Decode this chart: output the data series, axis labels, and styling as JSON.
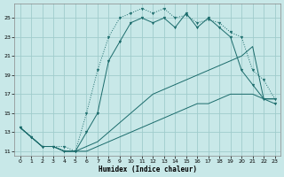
{
  "xlabel": "Humidex (Indice chaleur)",
  "bg_color": "#c8e8e8",
  "grid_color": "#a0cccc",
  "line_color": "#1a6b6b",
  "xlim": [
    -0.5,
    23.5
  ],
  "ylim": [
    10.5,
    26.5
  ],
  "yticks": [
    11,
    13,
    15,
    17,
    19,
    21,
    23,
    25
  ],
  "xticks": [
    0,
    1,
    2,
    3,
    4,
    5,
    6,
    7,
    8,
    9,
    10,
    11,
    12,
    13,
    14,
    15,
    16,
    17,
    18,
    19,
    20,
    21,
    22,
    23
  ],
  "line1_x": [
    0,
    1,
    2,
    3,
    4,
    5,
    6,
    7,
    8,
    9,
    10,
    11,
    12,
    13,
    14,
    15,
    16,
    17,
    18,
    19,
    20,
    21,
    22,
    23
  ],
  "line1_y": [
    13.5,
    12.5,
    11.5,
    11.5,
    11.5,
    11.0,
    15.0,
    19.5,
    23.0,
    25.0,
    25.5,
    26.0,
    25.5,
    26.0,
    25.0,
    25.3,
    24.5,
    24.8,
    24.5,
    23.5,
    23.0,
    19.5,
    18.5,
    16.5
  ],
  "line2_x": [
    0,
    1,
    2,
    3,
    4,
    5,
    6,
    7,
    8,
    9,
    10,
    11,
    12,
    13,
    14,
    15,
    16,
    17,
    18,
    19,
    20,
    21,
    22,
    23
  ],
  "line2_y": [
    13.5,
    12.5,
    11.5,
    11.5,
    11.0,
    11.0,
    13.0,
    15.0,
    20.5,
    22.5,
    24.5,
    25.0,
    24.5,
    25.0,
    24.0,
    25.5,
    24.0,
    25.0,
    24.0,
    23.0,
    19.5,
    18.0,
    16.5,
    16.0
  ],
  "line3_x": [
    0,
    1,
    2,
    3,
    4,
    5,
    6,
    7,
    8,
    9,
    10,
    11,
    12,
    13,
    14,
    15,
    16,
    17,
    18,
    19,
    20,
    21,
    22,
    23
  ],
  "line3_y": [
    13.5,
    12.5,
    11.5,
    11.5,
    11.0,
    11.0,
    11.5,
    12.0,
    13.0,
    14.0,
    15.0,
    16.0,
    17.0,
    17.5,
    18.0,
    18.5,
    19.0,
    19.5,
    20.0,
    20.5,
    21.0,
    22.0,
    16.5,
    16.5
  ],
  "line4_x": [
    0,
    1,
    2,
    3,
    4,
    5,
    6,
    7,
    8,
    9,
    10,
    11,
    12,
    13,
    14,
    15,
    16,
    17,
    18,
    19,
    20,
    21,
    22,
    23
  ],
  "line4_y": [
    13.5,
    12.5,
    11.5,
    11.5,
    11.0,
    11.0,
    11.0,
    11.5,
    12.0,
    12.5,
    13.0,
    13.5,
    14.0,
    14.5,
    15.0,
    15.5,
    16.0,
    16.0,
    16.5,
    17.0,
    17.0,
    17.0,
    16.5,
    16.5
  ]
}
